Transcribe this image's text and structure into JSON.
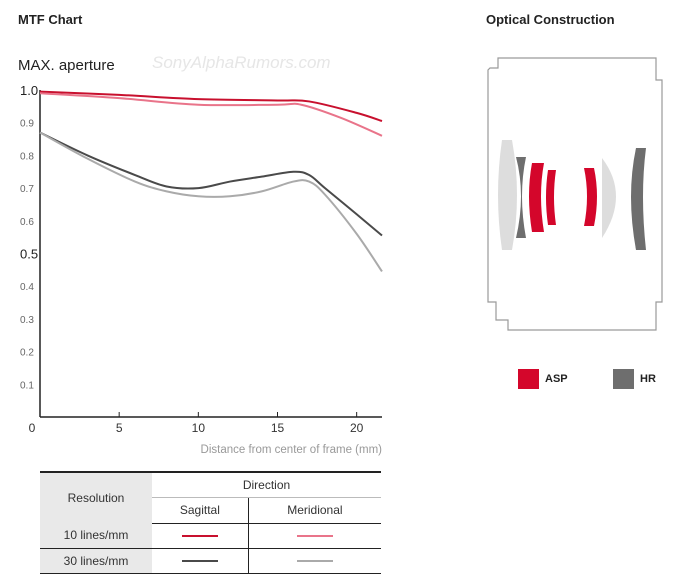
{
  "titles": {
    "mtf": "MTF Chart",
    "optical": "Optical Construction"
  },
  "watermark": "SonyAlphaRumors.com",
  "chart_data": {
    "type": "line",
    "title": "MAX. aperture",
    "xlabel": "Distance from center of frame (mm)",
    "ylabel": "",
    "xlim": [
      0,
      21.6
    ],
    "ylim": [
      0,
      1.0
    ],
    "xticks": [
      0,
      5,
      10,
      15,
      20
    ],
    "yticks": [
      0.1,
      0.2,
      0.3,
      0.4,
      0.5,
      0.6,
      0.7,
      0.8,
      0.9,
      1.0
    ],
    "grid": false,
    "series": [
      {
        "name": "10 lines/mm Sagittal",
        "color": "#c8102e",
        "x": [
          0,
          5,
          10,
          15,
          17,
          20,
          21.6
        ],
        "y": [
          0.995,
          0.985,
          0.972,
          0.968,
          0.965,
          0.93,
          0.905
        ]
      },
      {
        "name": "10 lines/mm Meridional",
        "color": "#e9748a",
        "x": [
          0,
          5,
          10,
          15,
          16.5,
          19,
          21.6
        ],
        "y": [
          0.99,
          0.975,
          0.955,
          0.955,
          0.955,
          0.915,
          0.86
        ]
      },
      {
        "name": "30 lines/mm Sagittal",
        "color": "#4a4a4a",
        "x": [
          0,
          3,
          6,
          8,
          10,
          12,
          14,
          16,
          17,
          18,
          20,
          21.6
        ],
        "y": [
          0.87,
          0.8,
          0.74,
          0.705,
          0.7,
          0.72,
          0.735,
          0.75,
          0.74,
          0.7,
          0.62,
          0.555
        ]
      },
      {
        "name": "30 lines/mm Meridional",
        "color": "#aaaaaa",
        "x": [
          0,
          3,
          6,
          8,
          10,
          12,
          14,
          16,
          17,
          18,
          20,
          21.6
        ],
        "y": [
          0.87,
          0.79,
          0.72,
          0.69,
          0.675,
          0.675,
          0.69,
          0.72,
          0.72,
          0.68,
          0.56,
          0.445
        ]
      }
    ]
  },
  "legend": [
    {
      "label": "ASP",
      "color": "#d4062b"
    },
    {
      "label": "HR",
      "color": "#6e6e6e"
    }
  ],
  "table": {
    "resolution_header": "Resolution",
    "direction_header": "Direction",
    "sagittal": "Sagittal",
    "meridional": "Meridional",
    "rows": [
      {
        "label": "10 lines/mm",
        "sagittal_color": "#c8102e",
        "meridional_color": "#e9748a"
      },
      {
        "label": "30 lines/mm",
        "sagittal_color": "#4a4a4a",
        "meridional_color": "#aaaaaa"
      }
    ]
  }
}
